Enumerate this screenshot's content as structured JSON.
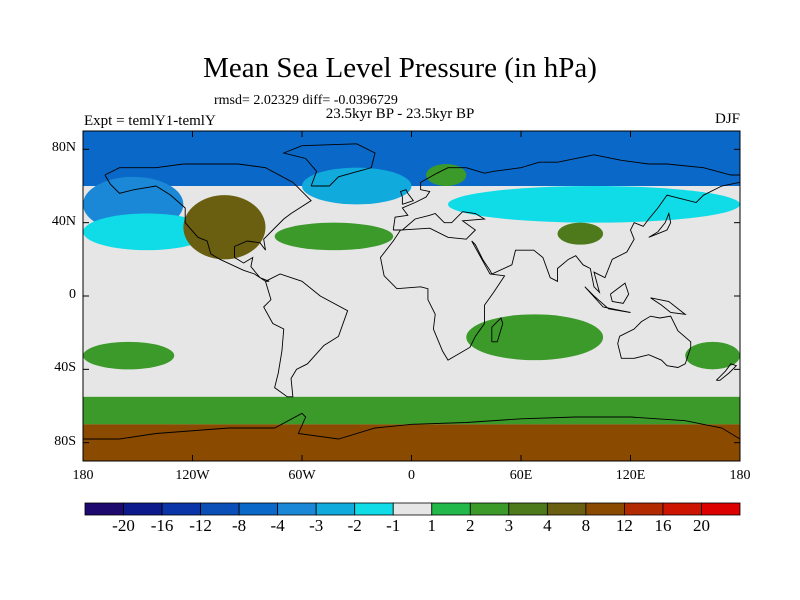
{
  "title": "Mean Sea Level Pressure (in hPa)",
  "stats_line": "rmsd= 2.02329 diff= -0.0396729",
  "period": "23.5kyr BP - 23.5kyr BP",
  "experiment": "Expt = temlY1-temlY",
  "season": "DJF",
  "lat_labels": [
    "80N",
    "40N",
    "0",
    "40S",
    "80S"
  ],
  "lon_labels": [
    "180",
    "120W",
    "60W",
    "0",
    "60E",
    "120E",
    "180"
  ],
  "colorbar": {
    "colors": [
      "#1e0a6e",
      "#0c1a8c",
      "#0a35a8",
      "#0a4fb8",
      "#0a68c8",
      "#1a88d6",
      "#10aadc",
      "#10dce8",
      "#e6e6e6",
      "#22b84a",
      "#3c9a2a",
      "#4f7a1c",
      "#6a5e10",
      "#8a4a00",
      "#b22a00",
      "#cc1400",
      "#dd0000"
    ],
    "labels": [
      "-20",
      "-16",
      "-12",
      "-8",
      "-4",
      "-3",
      "-2",
      "-1",
      "1",
      "2",
      "3",
      "4",
      "8",
      "12",
      "16",
      "20"
    ]
  },
  "chart_data": {
    "type": "heatmap",
    "title": "Mean Sea Level Pressure (in hPa)",
    "units": "hPa",
    "projection": "cylindrical-equidistant",
    "lon_range": [
      -180,
      180
    ],
    "lat_range": [
      -90,
      90
    ],
    "levels": [
      -20,
      -16,
      -12,
      -8,
      -4,
      -3,
      -2,
      -1,
      1,
      2,
      3,
      4,
      8,
      12,
      16,
      20
    ],
    "background_value_range": [
      -1,
      1
    ],
    "regions": [
      {
        "name": "arctic-low",
        "value": -8,
        "lon_range": [
          -180,
          180
        ],
        "lat_range": [
          60,
          90
        ]
      },
      {
        "name": "north-pacific-low",
        "value": -4,
        "lon_range": [
          -180,
          -125
        ],
        "lat_range": [
          35,
          65
        ]
      },
      {
        "name": "north-pacific-fringe",
        "value": -2,
        "lon_range": [
          -180,
          -110
        ],
        "lat_range": [
          25,
          45
        ]
      },
      {
        "name": "north-atlantic-low",
        "value": -3,
        "lon_range": [
          -60,
          0
        ],
        "lat_range": [
          50,
          70
        ]
      },
      {
        "name": "eurasia-low",
        "value": -2,
        "lon_range": [
          20,
          180
        ],
        "lat_range": [
          40,
          60
        ]
      },
      {
        "name": "north-america-high",
        "value": 4,
        "lon_range": [
          -125,
          -80
        ],
        "lat_range": [
          20,
          55
        ]
      },
      {
        "name": "north-atlantic-high",
        "value": 2,
        "lon_range": [
          -75,
          -10
        ],
        "lat_range": [
          25,
          40
        ]
      },
      {
        "name": "tibet-high",
        "value": 3,
        "lon_range": [
          80,
          105
        ],
        "lat_range": [
          28,
          40
        ]
      },
      {
        "name": "scandinavia-high",
        "value": 2,
        "lon_range": [
          8,
          30
        ],
        "lat_range": [
          60,
          72
        ]
      },
      {
        "name": "indian-ocean-high",
        "value": 2,
        "lon_range": [
          30,
          105
        ],
        "lat_range": [
          -35,
          -10
        ]
      },
      {
        "name": "south-pacific-high",
        "value": 2,
        "lon_range": [
          -180,
          -130
        ],
        "lat_range": [
          -40,
          -25
        ]
      },
      {
        "name": "australia-high",
        "value": 2,
        "lon_range": [
          150,
          180
        ],
        "lat_range": [
          -40,
          -25
        ]
      },
      {
        "name": "southern-ocean-low",
        "value": -1,
        "lon_range": [
          20,
          100
        ],
        "lat_range": [
          -55,
          -45
        ]
      },
      {
        "name": "southern-ocean-high",
        "value": 2,
        "lon_range": [
          -180,
          180
        ],
        "lat_range": [
          -70,
          -55
        ]
      },
      {
        "name": "antarctic-high",
        "value": 8,
        "lon_range": [
          -180,
          180
        ],
        "lat_range": [
          -90,
          -70
        ]
      }
    ]
  }
}
